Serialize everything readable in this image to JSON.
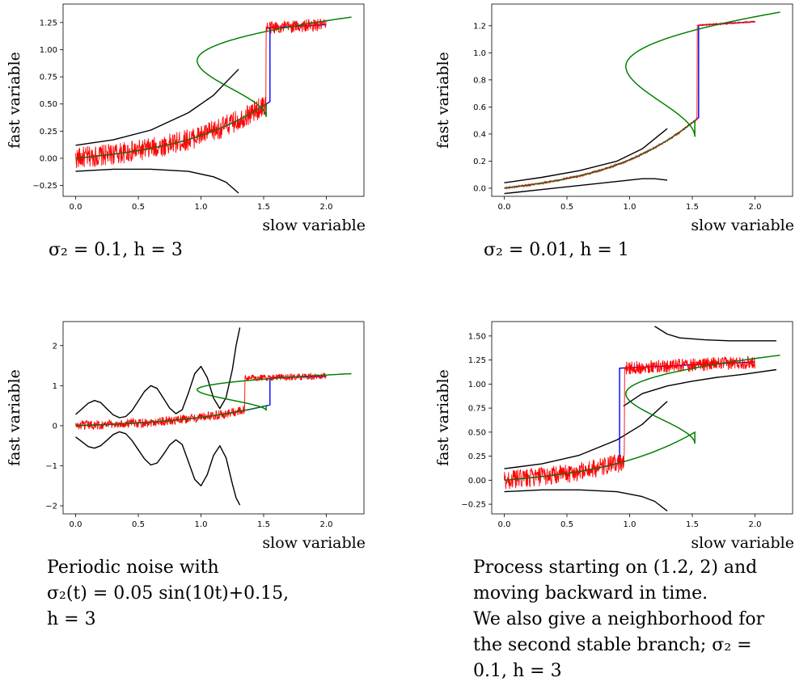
{
  "chart_data": [
    {
      "type": "line",
      "xlabel": "slow variable",
      "ylabel": "fast variable",
      "xlim": [
        -0.1,
        2.3
      ],
      "ylim": [
        -0.35,
        1.42
      ],
      "xticks": [
        0.0,
        0.5,
        1.0,
        1.5,
        2.0
      ],
      "yticks": [
        -0.25,
        0.0,
        0.25,
        0.5,
        0.75,
        1.0,
        1.25
      ],
      "ytick_labels": [
        "−0.25",
        "0.00",
        "0.25",
        "0.50",
        "0.75",
        "1.00",
        "1.25"
      ],
      "xtick_labels": [
        "0.0",
        "0.5",
        "1.0",
        "1.5",
        "2.0"
      ],
      "jump_x": 1.52,
      "blue_jump_x": 1.55,
      "noise_amp": 0.1,
      "noise_amp_after": 0.06,
      "upper_bound": {
        "x": [
          0,
          0.3,
          0.6,
          0.9,
          1.1,
          1.3
        ],
        "y": [
          0.12,
          0.17,
          0.26,
          0.42,
          0.58,
          0.82
        ]
      },
      "lower_bound": {
        "x": [
          0,
          0.3,
          0.6,
          0.9,
          1.1,
          1.2,
          1.3
        ],
        "y": [
          -0.12,
          -0.1,
          -0.1,
          -0.12,
          -0.17,
          -0.22,
          -0.32
        ]
      },
      "series": [
        {
          "color": "#ff0000"
        },
        {
          "color": "#0000ff"
        },
        {
          "color": "#008000"
        },
        {
          "color": "#000000"
        }
      ],
      "caption": {
        "line1": "σ₂ = 0.1, h = 3"
      }
    },
    {
      "type": "line",
      "xlabel": "slow variable",
      "ylabel": "fast variable",
      "xlim": [
        -0.1,
        2.3
      ],
      "ylim": [
        -0.06,
        1.36
      ],
      "xticks": [
        0.0,
        0.5,
        1.0,
        1.5,
        2.0
      ],
      "yticks": [
        0.0,
        0.2,
        0.4,
        0.6,
        0.8,
        1.0,
        1.2
      ],
      "ytick_labels": [
        "0.0",
        "0.2",
        "0.4",
        "0.6",
        "0.8",
        "1.0",
        "1.2"
      ],
      "xtick_labels": [
        "0.0",
        "0.5",
        "1.0",
        "1.5",
        "2.0"
      ],
      "jump_x": 1.54,
      "blue_jump_x": 1.55,
      "noise_amp": 0.008,
      "noise_amp_after": 0.006,
      "upper_bound": {
        "x": [
          0,
          0.3,
          0.6,
          0.9,
          1.1,
          1.3
        ],
        "y": [
          0.04,
          0.08,
          0.13,
          0.2,
          0.29,
          0.44
        ]
      },
      "lower_bound": {
        "x": [
          0,
          0.3,
          0.6,
          0.9,
          1.1,
          1.2,
          1.3
        ],
        "y": [
          -0.04,
          -0.01,
          0.02,
          0.05,
          0.07,
          0.07,
          0.06
        ]
      },
      "series": [
        {
          "color": "#ff0000"
        },
        {
          "color": "#0000ff"
        },
        {
          "color": "#008000"
        },
        {
          "color": "#000000"
        }
      ],
      "caption": {
        "line1": "σ₂ = 0.01, h = 1"
      }
    },
    {
      "type": "line",
      "xlabel": "slow variable",
      "ylabel": "fast variable",
      "xlim": [
        -0.1,
        2.3
      ],
      "ylim": [
        -2.2,
        2.6
      ],
      "xticks": [
        0.0,
        0.5,
        1.0,
        1.5,
        2.0
      ],
      "yticks": [
        -2,
        -1,
        0,
        1,
        2
      ],
      "ytick_labels": [
        "−2",
        "−1",
        "0",
        "1",
        "2"
      ],
      "xtick_labels": [
        "0.0",
        "0.5",
        "1.0",
        "1.5",
        "2.0"
      ],
      "jump_x": 1.35,
      "blue_jump_x": 1.55,
      "noise_amp": 0.12,
      "noise_amp_after": 0.08,
      "upper_bound": {
        "x": [
          0,
          0.05,
          0.1,
          0.15,
          0.2,
          0.25,
          0.3,
          0.35,
          0.4,
          0.45,
          0.5,
          0.55,
          0.6,
          0.65,
          0.7,
          0.75,
          0.8,
          0.85,
          0.9,
          0.95,
          1.0,
          1.05,
          1.1,
          1.15,
          1.2,
          1.25,
          1.28,
          1.31
        ],
        "y": [
          0.28,
          0.42,
          0.56,
          0.63,
          0.58,
          0.42,
          0.27,
          0.2,
          0.23,
          0.38,
          0.62,
          0.86,
          1.0,
          0.93,
          0.69,
          0.44,
          0.3,
          0.4,
          0.82,
          1.3,
          1.48,
          1.2,
          0.69,
          0.43,
          0.7,
          1.4,
          2.0,
          2.45
        ]
      },
      "lower_bound": {
        "x": [
          0,
          0.05,
          0.1,
          0.15,
          0.2,
          0.25,
          0.3,
          0.35,
          0.4,
          0.45,
          0.5,
          0.55,
          0.6,
          0.65,
          0.7,
          0.75,
          0.8,
          0.85,
          0.9,
          0.95,
          1.0,
          1.05,
          1.1,
          1.15,
          1.2,
          1.25,
          1.28,
          1.31
        ],
        "y": [
          -0.28,
          -0.4,
          -0.52,
          -0.56,
          -0.5,
          -0.36,
          -0.22,
          -0.15,
          -0.2,
          -0.37,
          -0.6,
          -0.83,
          -0.98,
          -0.93,
          -0.72,
          -0.48,
          -0.35,
          -0.47,
          -0.9,
          -1.34,
          -1.5,
          -1.22,
          -0.74,
          -0.5,
          -0.8,
          -1.45,
          -1.8,
          -1.98
        ]
      },
      "series": [
        {
          "color": "#ff0000"
        },
        {
          "color": "#0000ff"
        },
        {
          "color": "#008000"
        },
        {
          "color": "#000000"
        }
      ],
      "caption": {
        "line1": "Periodic noise with",
        "line2": "σ₂(t) = 0.05 sin(10t)+0.15,",
        "line3": "h = 3"
      }
    },
    {
      "type": "line",
      "xlabel": "slow variable",
      "ylabel": "fast variable",
      "xlim": [
        -0.1,
        2.3
      ],
      "ylim": [
        -0.35,
        1.65
      ],
      "xticks": [
        0.0,
        0.5,
        1.0,
        1.5,
        2.0
      ],
      "yticks": [
        -0.25,
        0.0,
        0.25,
        0.5,
        0.75,
        1.0,
        1.25,
        1.5
      ],
      "ytick_labels": [
        "−0.25",
        "0.00",
        "0.25",
        "0.50",
        "0.75",
        "1.00",
        "1.25",
        "1.50"
      ],
      "xtick_labels": [
        "0.0",
        "0.5",
        "1.0",
        "1.5",
        "2.0"
      ],
      "jump_x": 0.96,
      "blue_jump_x": 0.92,
      "noise_amp": 0.1,
      "noise_amp_after": 0.07,
      "upper_bound": {
        "x": [
          0,
          0.3,
          0.6,
          0.9,
          1.1,
          1.3
        ],
        "y": [
          0.12,
          0.17,
          0.26,
          0.42,
          0.58,
          0.82
        ]
      },
      "lower_bound": {
        "x": [
          0,
          0.3,
          0.6,
          0.9,
          1.1,
          1.2,
          1.3
        ],
        "y": [
          -0.12,
          -0.1,
          -0.1,
          -0.12,
          -0.17,
          -0.22,
          -0.32
        ]
      },
      "upper2_bound": {
        "x": [
          1.2,
          1.3,
          1.4,
          1.6,
          1.8,
          2.0,
          2.17
        ],
        "y": [
          1.6,
          1.52,
          1.48,
          1.46,
          1.45,
          1.45,
          1.45
        ]
      },
      "lower2_bound": {
        "x": [
          0.95,
          1.1,
          1.3,
          1.5,
          1.7,
          1.9,
          2.17
        ],
        "y": [
          0.77,
          0.9,
          0.98,
          1.03,
          1.07,
          1.1,
          1.15
        ]
      },
      "series": [
        {
          "color": "#ff0000"
        },
        {
          "color": "#0000ff"
        },
        {
          "color": "#008000"
        },
        {
          "color": "#000000"
        }
      ],
      "caption": {
        "line1": "Process starting on (1.2, 2) and",
        "line2": "moving backward in time.",
        "line3": "We also give a neighborhood for",
        "line4": "the second stable branch; σ₂ =",
        "line5": "0.1, h = 3"
      }
    }
  ]
}
